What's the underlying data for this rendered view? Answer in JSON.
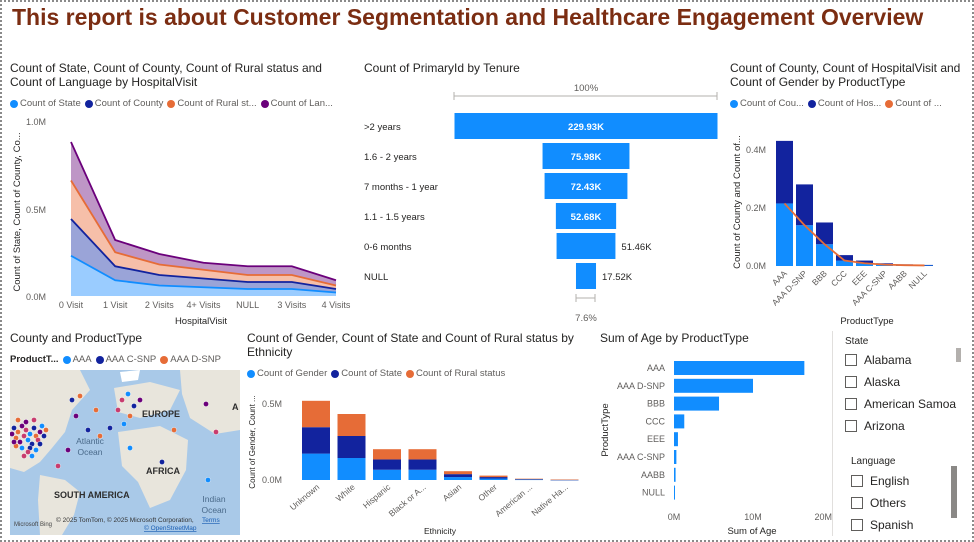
{
  "report": {
    "title": "This report is about Customer Segmentation and Healthcare Engagement Overview"
  },
  "colors": {
    "blue": "#118dff",
    "navy": "#12239e",
    "orange": "#e66c37",
    "purple": "#6b007b",
    "title": "#7b2d12"
  },
  "area_chart": {
    "title": "Count of State, Count of County, Count of Rural status and Count of Language by HospitalVisit",
    "legend": [
      "Count of State",
      "Count of County",
      "Count of Rural st...",
      "Count of Lan..."
    ],
    "ylabel": "Count of State, Count of County, Co...",
    "xlabel": "HospitalVisit",
    "yticks": [
      "0.0M",
      "0.5M",
      "1.0M"
    ]
  },
  "funnel_chart": {
    "title": "Count of PrimaryId by Tenure",
    "top_pct": "100%",
    "bottom_pct": "7.6%"
  },
  "combo_chart": {
    "title": "Count of County, Count of HospitalVisit and Count of Gender by ProductType",
    "legend": [
      "Count of Cou...",
      "Count of Hos...",
      "Count of ..."
    ],
    "ylabel": "Count of County and Count of...",
    "xlabel": "ProductType",
    "yticks": [
      "0.0M",
      "0.2M",
      "0.4M"
    ]
  },
  "map_visual": {
    "title": "County and ProductType",
    "legend_label": "ProductT...",
    "legend": [
      "AAA",
      "AAA C-SNP",
      "AAA D-SNP"
    ],
    "labels": {
      "europe": "EUROPE",
      "atlantic": "Atlantic",
      "ocean": "Ocean",
      "africa": "AFRICA",
      "south_america": "SOUTH AMERICA",
      "indian": "Indian",
      "indian_ocean": "Ocean",
      "edge": "A"
    },
    "attribution": "© 2025 TomTom, © 2025 Microsoft Corporation,",
    "terms": "Terms",
    "osm": "© OpenStreetMap",
    "brand": "Microsoft Bing"
  },
  "ethnicity_chart": {
    "title": "Count of Gender, Count of State and Count of Rural status by Ethnicity",
    "legend": [
      "Count of Gender",
      "Count of State",
      "Count of Rural status"
    ],
    "ylabel": "Count of Gender, Count ...",
    "xlabel": "Ethnicity",
    "yticks": [
      "0.0M",
      "0.5M"
    ]
  },
  "age_chart": {
    "title": "Sum of Age by ProductType",
    "ylabel": "ProductType",
    "xlabel": "Sum of Age",
    "xticks": [
      "0M",
      "10M",
      "20M"
    ]
  },
  "slicers": {
    "state": {
      "label": "State",
      "options": [
        "Alabama",
        "Alaska",
        "American Samoa",
        "Arizona"
      ]
    },
    "language": {
      "label": "Language",
      "options": [
        "English",
        "Others",
        "Spanish"
      ]
    }
  },
  "chart_data": [
    {
      "type": "area",
      "title": "Count of State, Count of County, Count of Rural status and Count of Language by HospitalVisit",
      "categories": [
        "0 Visit",
        "1 Visit",
        "2 Visits",
        "4+ Visits",
        "NULL",
        "3 Visits",
        "4 Visits"
      ],
      "stacked": true,
      "series": [
        {
          "name": "Count of State",
          "values": [
            0.23,
            0.09,
            0.06,
            0.05,
            0.04,
            0.04,
            0.02
          ]
        },
        {
          "name": "Count of County",
          "values": [
            0.21,
            0.08,
            0.06,
            0.05,
            0.04,
            0.04,
            0.02
          ]
        },
        {
          "name": "Count of Rural st...",
          "values": [
            0.22,
            0.08,
            0.06,
            0.05,
            0.04,
            0.04,
            0.02
          ]
        },
        {
          "name": "Count of Lan...",
          "values": [
            0.22,
            0.07,
            0.06,
            0.04,
            0.05,
            0.05,
            0.03
          ]
        }
      ],
      "xlabel": "HospitalVisit",
      "ylabel": "Count of State, Count of County, Co...",
      "ylim": [
        0,
        1.0
      ],
      "unit": "M"
    },
    {
      "type": "bar",
      "subtype": "funnel",
      "title": "Count of PrimaryId by Tenure",
      "categories": [
        ">2 years",
        "1.6 - 2 years",
        "7 months - 1 year",
        "1.1 - 1.5 years",
        "0-6 months",
        "NULL"
      ],
      "values": [
        229.93,
        75.98,
        72.43,
        52.68,
        51.46,
        17.52
      ],
      "labels": [
        "229.93K",
        "75.98K",
        "72.43K",
        "52.68K",
        "51.46K",
        "17.52K"
      ]
    },
    {
      "type": "bar",
      "subtype": "stacked-combo",
      "title": "Count of County, Count of HospitalVisit and Count of Gender by ProductType",
      "categories": [
        "AAA",
        "AAA D-SNP",
        "BBB",
        "CCC",
        "EEE",
        "AAA C-SNP",
        "AABB",
        "NULL"
      ],
      "series": [
        {
          "name": "Count of Cou...",
          "values": [
            0.23,
            0.15,
            0.08,
            0.02,
            0.01,
            0.005,
            0.003,
            0.002
          ]
        },
        {
          "name": "Count of Hos...",
          "values": [
            0.23,
            0.15,
            0.08,
            0.02,
            0.01,
            0.005,
            0.003,
            0.002
          ]
        },
        {
          "name": "Count of ...",
          "values": [
            0.23,
            0.15,
            0.08,
            0.02,
            0.01,
            0.005,
            0.003,
            0.002
          ]
        }
      ],
      "ylim": [
        0,
        0.5
      ],
      "unit": "M"
    },
    {
      "type": "bar",
      "subtype": "stacked",
      "title": "Count of Gender, Count of State and Count of Rural status by Ethnicity",
      "categories": [
        "Unknown",
        "White",
        "Hispanic",
        "Black or A...",
        "Asian",
        "Other",
        "American ...",
        "Native Ha..."
      ],
      "series": [
        {
          "name": "Count of Gender",
          "values": [
            0.18,
            0.15,
            0.07,
            0.07,
            0.02,
            0.01,
            0.003,
            0.001
          ]
        },
        {
          "name": "Count of State",
          "values": [
            0.18,
            0.15,
            0.07,
            0.07,
            0.02,
            0.01,
            0.003,
            0.001
          ]
        },
        {
          "name": "Count of Rural status",
          "values": [
            0.18,
            0.15,
            0.07,
            0.07,
            0.02,
            0.01,
            0.003,
            0.001
          ]
        }
      ],
      "ylim": [
        0,
        0.6
      ],
      "unit": "M"
    },
    {
      "type": "bar",
      "subtype": "horizontal",
      "title": "Sum of Age by ProductType",
      "categories": [
        "AAA",
        "AAA D-SNP",
        "BBB",
        "CCC",
        "EEE",
        "AAA C-SNP",
        "AABB",
        "NULL"
      ],
      "values": [
        16.5,
        10.0,
        5.7,
        1.3,
        0.5,
        0.3,
        0.2,
        0.1
      ],
      "xlim": [
        0,
        20
      ],
      "unit": "M"
    }
  ]
}
